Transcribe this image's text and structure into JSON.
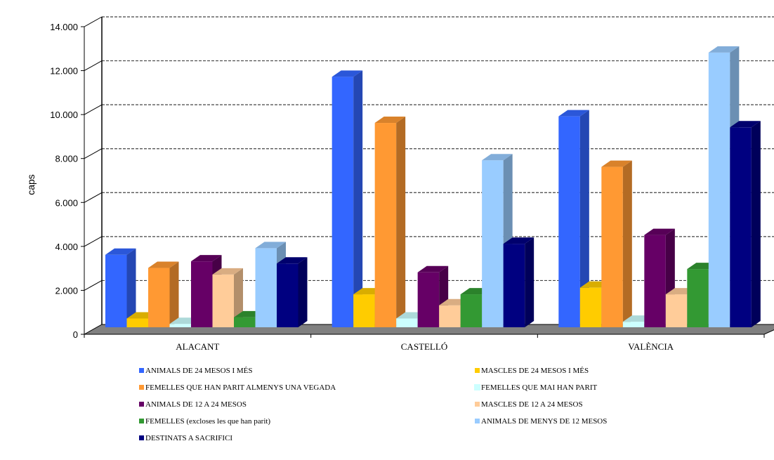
{
  "chart_data": {
    "type": "bar",
    "title": "",
    "xlabel": "",
    "ylabel": "caps",
    "ylim": [
      0,
      14000
    ],
    "y_ticks": [
      "0",
      "2.000",
      "4.000",
      "6.000",
      "8.000",
      "10.000",
      "12.000",
      "14.000"
    ],
    "grid": true,
    "legend_position": "bottom",
    "categories": [
      "ALACANT",
      "CASTELLÓ",
      "VALÈNCIA"
    ],
    "series": [
      {
        "name": "ANIMALS DE 24 MESOS I MÉS",
        "color": "#3366ff",
        "values": [
          3300,
          11400,
          9600
        ]
      },
      {
        "name": "MASCLES DE 24 MESOS I MÉS",
        "color": "#ffcc00",
        "values": [
          400,
          1500,
          1800
        ]
      },
      {
        "name": "FEMELLES QUE HAN PARIT ALMENYS UNA VEGADA",
        "color": "#ff9933",
        "values": [
          2700,
          9300,
          7300
        ]
      },
      {
        "name": "FEMELLES QUE MAI HAN PARIT",
        "color": "#ccffff",
        "values": [
          150,
          400,
          250
        ]
      },
      {
        "name": "ANIMALS DE 12 A 24 MESOS",
        "color": "#660066",
        "values": [
          3000,
          2500,
          4200
        ]
      },
      {
        "name": "MASCLES DE 12 A 24 MESOS",
        "color": "#ffcc99",
        "values": [
          2400,
          1000,
          1500
        ]
      },
      {
        "name": "FEMELLES (excloses les que han parit)",
        "color": "#339933",
        "values": [
          450,
          1500,
          2650
        ]
      },
      {
        "name": "ANIMALS DE MENYS DE 12 MESOS",
        "color": "#99ccff",
        "values": [
          3600,
          7600,
          12500
        ]
      },
      {
        "name": "DESTINATS A SACRIFICI",
        "color": "#000080",
        "values": [
          2900,
          3800,
          9100
        ]
      }
    ]
  }
}
